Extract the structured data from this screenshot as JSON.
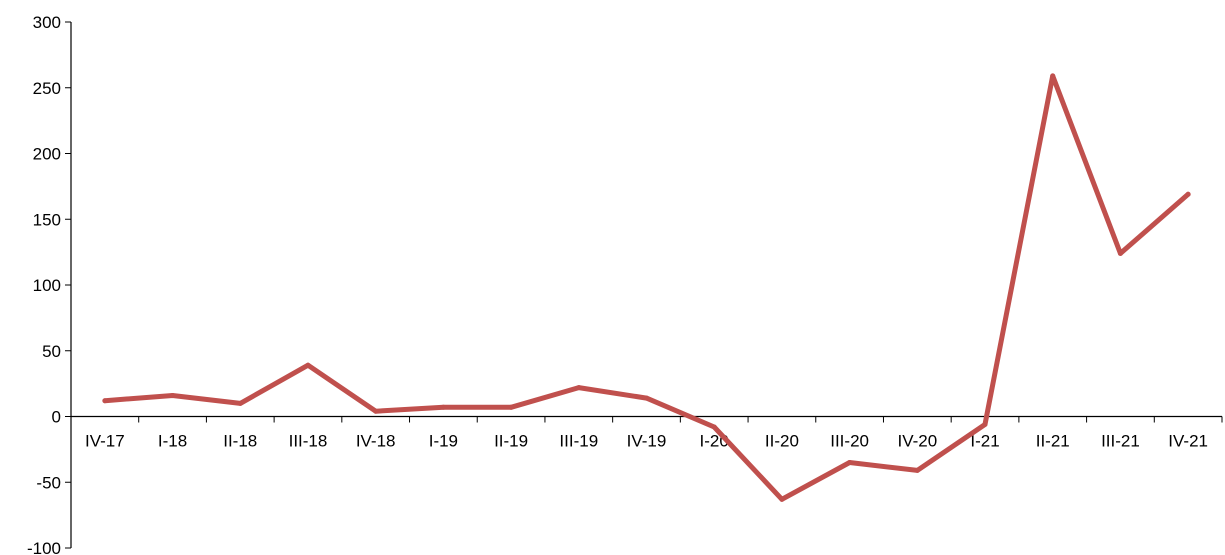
{
  "chart_data": {
    "type": "line",
    "title": "",
    "xlabel": "",
    "ylabel": "",
    "categories": [
      "IV-17",
      "I-18",
      "II-18",
      "III-18",
      "IV-18",
      "I-19",
      "II-19",
      "III-19",
      "IV-19",
      "I-20",
      "II-20",
      "III-20",
      "IV-20",
      "I-21",
      "II-21",
      "III-21",
      "IV-21"
    ],
    "series": [
      {
        "color": "#c0504d",
        "values": [
          12,
          16,
          10,
          39,
          4,
          7,
          7,
          22,
          14,
          -8,
          -63,
          -35,
          -41,
          -6,
          259,
          124,
          169
        ]
      }
    ],
    "ylim": [
      -100,
      300
    ],
    "yticks": [
      -100,
      -50,
      0,
      50,
      100,
      150,
      200,
      250,
      300
    ],
    "grid": false,
    "legend": "none"
  }
}
